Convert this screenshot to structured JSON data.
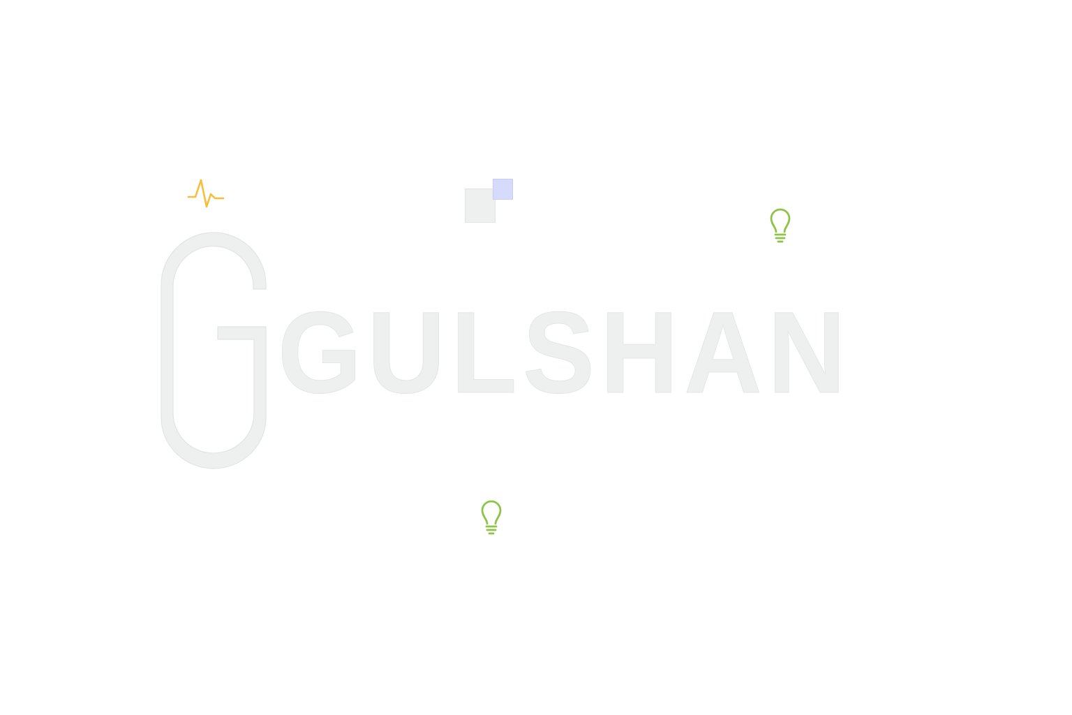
{
  "brand": {
    "wordmark": "GULSHAN",
    "logo_letter": "G"
  },
  "icons": {
    "pulse": "pulse-icon",
    "bulb": "lightbulb-icon",
    "square_grey": "square-shape",
    "square_blue": "square-shape"
  },
  "colors": {
    "text_fill": "#eef0ef",
    "pulse": "#f6be3b",
    "bulb": "#8cc447",
    "square_blue": "#d6dbfb",
    "background": "#ffffff"
  }
}
